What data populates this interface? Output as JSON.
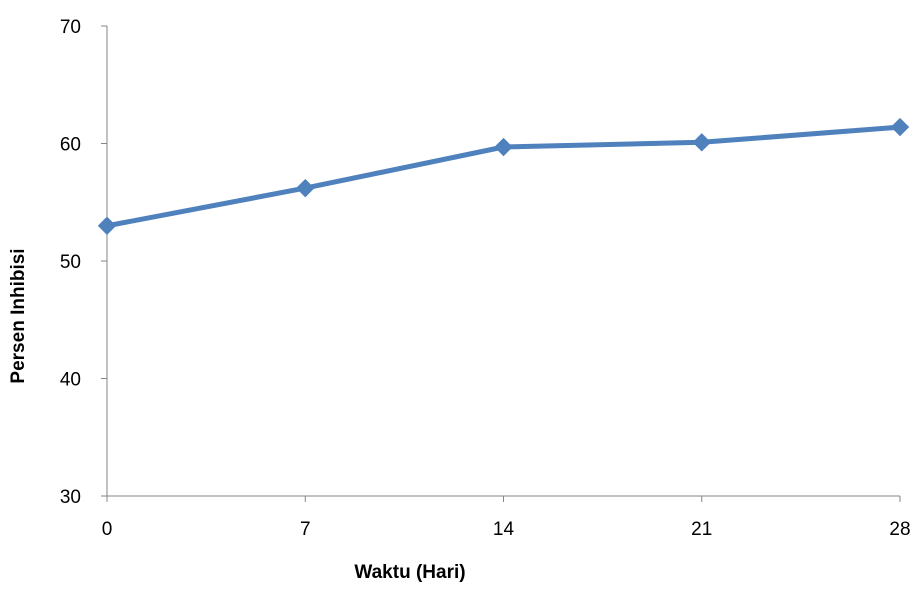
{
  "chart_data": {
    "type": "line",
    "title": "",
    "xlabel": "Waktu (Hari)",
    "ylabel": "Persen Inhibisi",
    "x_ticks": [
      "0",
      "7",
      "14",
      "21",
      "28"
    ],
    "y_ticks": [
      "30",
      "40",
      "50",
      "60",
      "70"
    ],
    "ylim": [
      30,
      70
    ],
    "grid": false,
    "legend": "none",
    "series": [
      {
        "x": [
          0,
          7,
          14,
          21,
          28
        ],
        "values": [
          53.0,
          56.2,
          59.7,
          60.1,
          61.4
        ],
        "color": "#4F81BD",
        "marker": "diamond"
      }
    ],
    "axis_color": "#868686"
  }
}
